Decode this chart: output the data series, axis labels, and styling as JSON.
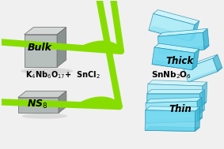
{
  "bg_color": "#f0f0f0",
  "arrow_color": "#88dd00",
  "cube_face": "#b8c0be",
  "cube_top": "#d4d8d6",
  "cube_side": "#8a9290",
  "slab_face": "#b0b8b6",
  "slab_top": "#ccd0ce",
  "slab_side": "#888e8c",
  "sheet_main": "#70d8f0",
  "sheet_light": "#a8ecf8",
  "sheet_top": "#c8f4fc",
  "sheet_side": "#40b8d8",
  "text_bulk": "Bulk",
  "text_nss": "NS$_8$",
  "text_thick": "Thick",
  "text_thin": "Thin",
  "text_reaction": "K$_4$Nb$_6$O$_{17}$+  SnCl$_2$",
  "text_product": "SnNb$_2$O$_6$",
  "figsize": [
    2.83,
    1.89
  ],
  "dpi": 100
}
